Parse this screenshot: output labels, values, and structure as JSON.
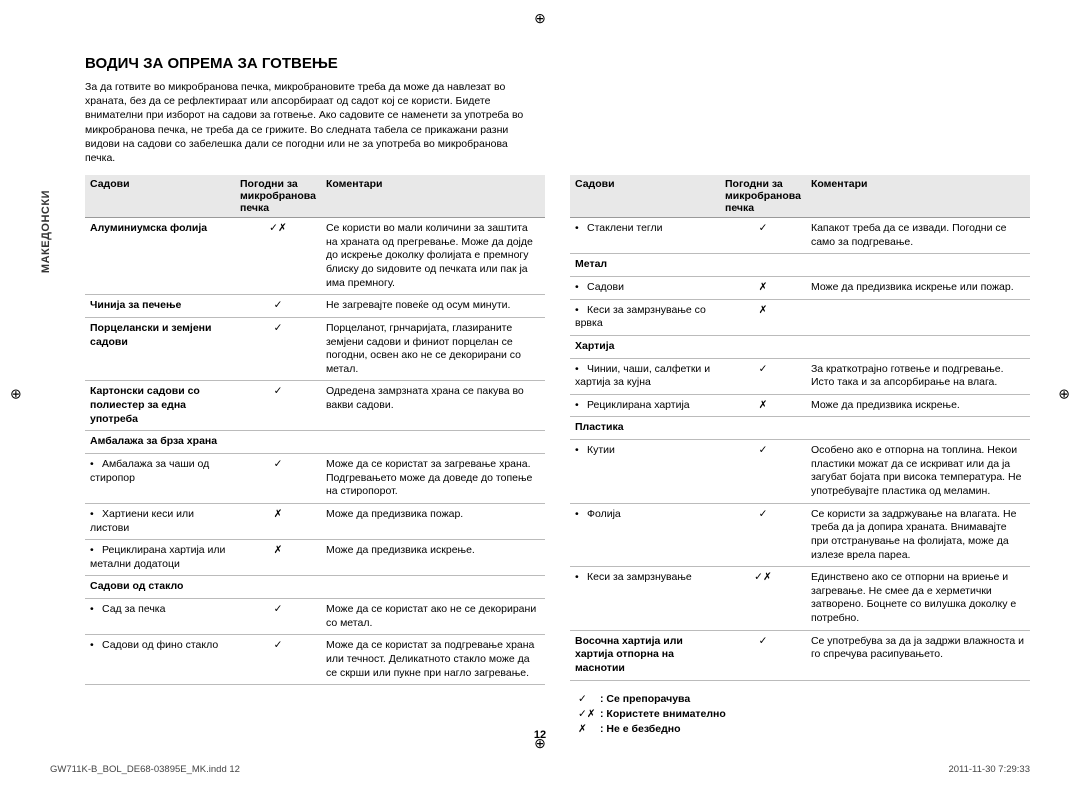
{
  "sidebar": {
    "language": "МАКЕДОНСКИ"
  },
  "title": "ВОДИЧ ЗА ОПРЕМА ЗА ГОТВЕЊЕ",
  "intro": "За да готвите во микробранова печка, микробрановите треба да може да навлезат во храната, без да се рефлектираат или апсорбираат од садот кој се користи. Бидете внимателни при изборот на садови за готвење. Ако садовите се наменети за употреба во микробранова печка, не треба да се грижите. Во следната табела се прикажани разни видови на садови со забелешка дали се погодни или не за употреба во микробранова печка.",
  "headers": {
    "c1": "Садови",
    "c2": "Погодни за микробранова печка",
    "c3": "Коментари"
  },
  "left_rows": [
    {
      "type": "row",
      "c1_bold": true,
      "c1": "Алуминиумска фолија",
      "c2": "✓✗",
      "c3": "Се користи во мали количини за заштита на храната од прегревање. Може да дојде до искрење доколку фолијата е премногу блиску до ѕидовите од печката или пак ја има премногу."
    },
    {
      "type": "row",
      "c1_bold": true,
      "c1": "Чинија за печење",
      "c2": "✓",
      "c3": "Не загревајте повеќе од осум минути."
    },
    {
      "type": "row",
      "c1_bold": true,
      "c1": "Порцелански и земјени садови",
      "c2": "✓",
      "c3": "Порцеланот, грнчаријата, глазираните земјени садови и финиот порцелан се погодни, освен ако не се декорирани со метал."
    },
    {
      "type": "row",
      "c1_bold": true,
      "c1": "Картонски садови со полиестер за една употреба",
      "c2": "✓",
      "c3": "Одредена замрзната храна се пакува во вакви садови."
    },
    {
      "type": "section",
      "c1": "Амбалажа за брза храна"
    },
    {
      "type": "sub",
      "c1": "Амбалажа за чаши од стиропор",
      "c2": "✓",
      "c3": "Може да се користат за загревање храна. Подгревањето може да доведе до топење на стиропорот."
    },
    {
      "type": "sub",
      "c1": "Хартиени кеси или листови",
      "c2": "✗",
      "c3": "Може да предизвика пожар."
    },
    {
      "type": "sub",
      "c1": "Рециклирана хартија или метални додатоци",
      "c2": "✗",
      "c3": "Може да предизвика искрење."
    },
    {
      "type": "section",
      "c1": "Садови од стакло"
    },
    {
      "type": "sub",
      "c1": "Сад за печка",
      "c2": "✓",
      "c3": "Може да се користат ако не се декорирани со метал."
    },
    {
      "type": "sub",
      "c1": "Садови од фино стакло",
      "c2": "✓",
      "c3": "Може да се користат за подгревање храна или течност. Деликатното стакло може да се скрши или пукне при нагло загревање."
    }
  ],
  "right_rows": [
    {
      "type": "sub",
      "c1": "Стаклени тегли",
      "c2": "✓",
      "c3": "Капакот треба да се извади. Погодни се само за подгревање."
    },
    {
      "type": "section",
      "c1": "Метал"
    },
    {
      "type": "sub",
      "c1": "Садови",
      "c2": "✗",
      "c3": "Може да предизвика искрење или пожар."
    },
    {
      "type": "sub",
      "c1": "Кеси за замрзнување со врвка",
      "c2": "✗",
      "c3": ""
    },
    {
      "type": "section",
      "c1": "Хартија"
    },
    {
      "type": "sub",
      "c1": "Чинии, чаши, салфетки и хартија за кујна",
      "c2": "✓",
      "c3": "За краткотрајно готвење и подгревање. Исто така и за апсорбирање на влага."
    },
    {
      "type": "sub",
      "c1": "Рециклирана хартија",
      "c2": "✗",
      "c3": "Може да предизвика искрење."
    },
    {
      "type": "section",
      "c1": "Пластика"
    },
    {
      "type": "sub",
      "c1": "Кутии",
      "c2": "✓",
      "c3": "Особено ако е отпорна на топлина. Некои пластики можат да се искриват или да ја загубат бојата при висока температура. Не употребувајте пластика од меламин."
    },
    {
      "type": "sub",
      "c1": "Фолија",
      "c2": "✓",
      "c3": "Се користи за задржување на влагата. Не треба да ја допира храната. Внимавајте при отстранување на фолијата, може да излезе врела пареа."
    },
    {
      "type": "sub",
      "c1": "Кеси за замрзнување",
      "c2": "✓✗",
      "c3": "Единствено ако се отпорни на вриење и загревање. Не смее да е херметички затворено. Боцнете со вилушка доколку е потребно."
    },
    {
      "type": "row",
      "c1_bold": true,
      "c1": "Восочна хартија или хартија отпорна на маснотии",
      "c2": "✓",
      "c3": "Се употребува за да ја задржи влажноста и го спречува расипувањето."
    }
  ],
  "legend": [
    {
      "sym": "✓",
      "text": ": Се препорачува"
    },
    {
      "sym": "✓✗",
      "text": ": Користете внимателно"
    },
    {
      "sym": "✗",
      "text": ": Не е безбедно"
    }
  ],
  "page_num": "12",
  "footer": {
    "left": "GW711K-B_BOL_DE68-03895E_MK.indd   12",
    "right": "2011-11-30   7:29:33"
  }
}
